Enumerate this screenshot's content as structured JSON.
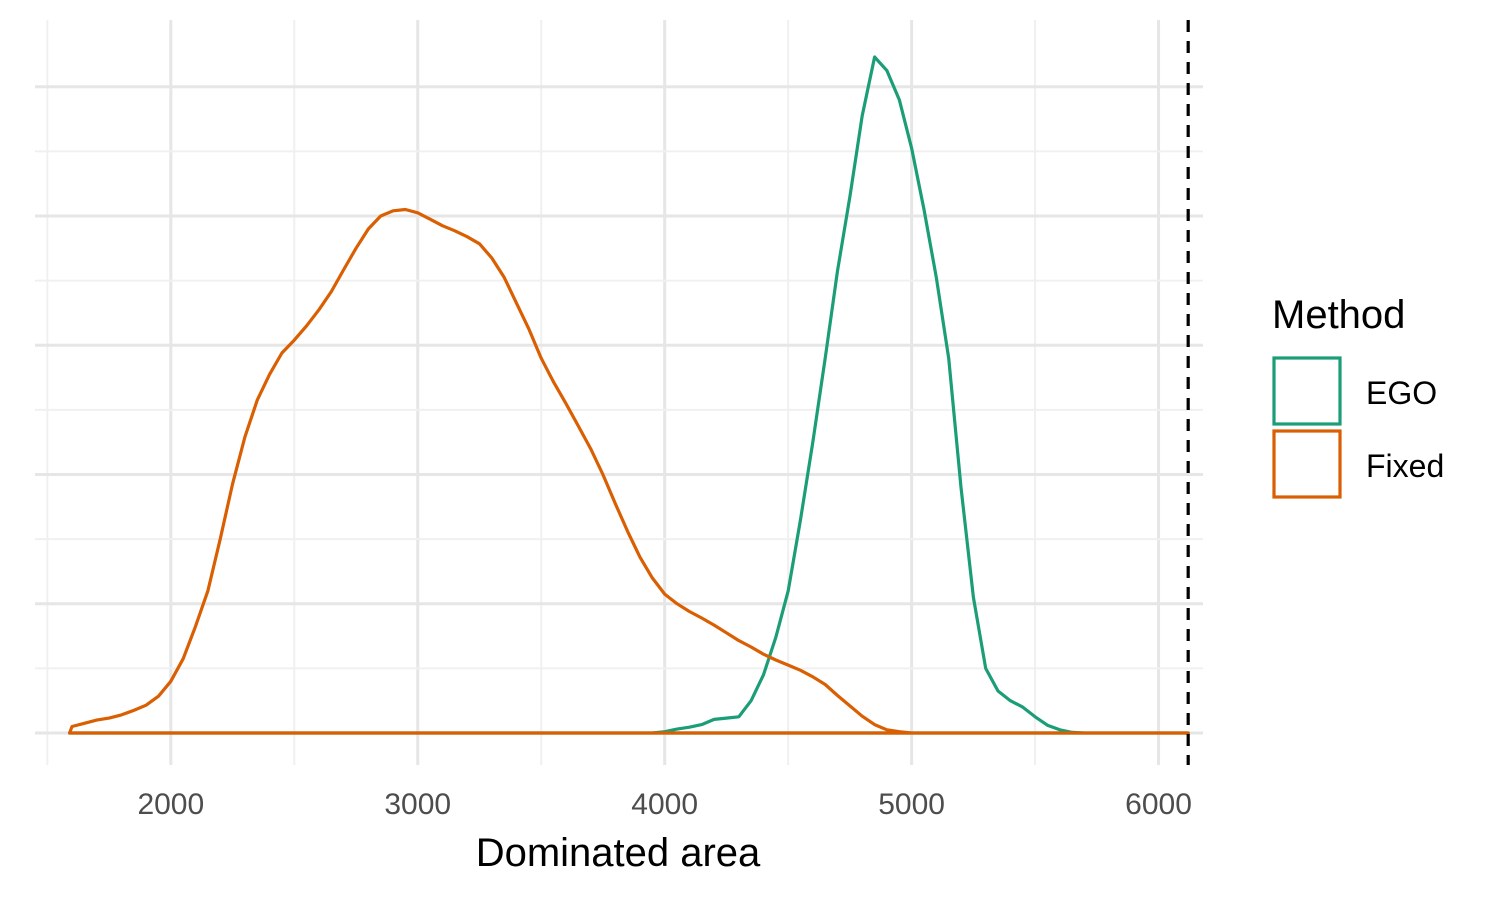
{
  "chart_data": {
    "type": "density",
    "title": "",
    "xlabel": "Dominated area",
    "ylabel": "",
    "xlim": [
      1450,
      6180
    ],
    "ylim": [
      0,
      0.00218
    ],
    "x_ticks": [
      2000,
      3000,
      4000,
      5000,
      6000
    ],
    "grid": true,
    "reference_line": {
      "x": 6120,
      "style": "dashed",
      "color": "#000000"
    },
    "legend": {
      "title": "Method",
      "position": "right"
    },
    "series": [
      {
        "name": "EGO",
        "color": "#1b9e77",
        "points": [
          [
            1590,
            0
          ],
          [
            3950,
            0
          ],
          [
            4000,
            2e-05
          ],
          [
            4050,
            6e-05
          ],
          [
            4100,
            9e-05
          ],
          [
            4150,
            0.00013
          ],
          [
            4200,
            0.00021
          ],
          [
            4250,
            0.00023
          ],
          [
            4300,
            0.00025
          ],
          [
            4350,
            0.0005
          ],
          [
            4400,
            0.0009
          ],
          [
            4450,
            0.00148
          ],
          [
            4500,
            0.0022
          ],
          [
            4550,
            0.0033
          ],
          [
            4600,
            0.0045
          ],
          [
            4650,
            0.0058
          ],
          [
            4700,
            0.00715
          ],
          [
            4750,
            0.0083
          ],
          [
            4800,
            0.00955
          ],
          [
            4850,
            0.01046
          ],
          [
            4900,
            0.01025
          ],
          [
            4950,
            0.0098
          ],
          [
            5000,
            0.00905
          ],
          [
            5050,
            0.0081
          ],
          [
            5100,
            0.00705
          ],
          [
            5150,
            0.0058
          ],
          [
            5200,
            0.0038
          ],
          [
            5250,
            0.0021
          ],
          [
            5300,
            0.001
          ],
          [
            5350,
            0.00065
          ],
          [
            5400,
            0.0005
          ],
          [
            5450,
            0.0004
          ],
          [
            5500,
            0.00025
          ],
          [
            5550,
            0.00012
          ],
          [
            5600,
            5e-05
          ],
          [
            5650,
            1e-05
          ],
          [
            5700,
            0
          ],
          [
            6120,
            0
          ]
        ]
      },
      {
        "name": "Fixed",
        "color": "#d95f02",
        "points": [
          [
            1590,
            0
          ],
          [
            1600,
            0.0001
          ],
          [
            1650,
            0.00015
          ],
          [
            1700,
            0.0002
          ],
          [
            1750,
            0.00023
          ],
          [
            1800,
            0.00028
          ],
          [
            1850,
            0.00035
          ],
          [
            1900,
            0.00043
          ],
          [
            1950,
            0.00057
          ],
          [
            2000,
            0.0008
          ],
          [
            2050,
            0.00115
          ],
          [
            2100,
            0.00165
          ],
          [
            2150,
            0.0022
          ],
          [
            2200,
            0.003
          ],
          [
            2250,
            0.00385
          ],
          [
            2300,
            0.00458
          ],
          [
            2350,
            0.00515
          ],
          [
            2400,
            0.00555
          ],
          [
            2450,
            0.00588
          ],
          [
            2500,
            0.00608
          ],
          [
            2550,
            0.0063
          ],
          [
            2600,
            0.00655
          ],
          [
            2650,
            0.00683
          ],
          [
            2700,
            0.00717
          ],
          [
            2750,
            0.0075
          ],
          [
            2800,
            0.0078
          ],
          [
            2850,
            0.008
          ],
          [
            2900,
            0.00808
          ],
          [
            2950,
            0.0081
          ],
          [
            3000,
            0.00805
          ],
          [
            3050,
            0.00795
          ],
          [
            3100,
            0.00785
          ],
          [
            3150,
            0.00777
          ],
          [
            3200,
            0.00768
          ],
          [
            3250,
            0.00757
          ],
          [
            3300,
            0.00735
          ],
          [
            3350,
            0.00705
          ],
          [
            3400,
            0.00665
          ],
          [
            3450,
            0.00625
          ],
          [
            3500,
            0.0058
          ],
          [
            3550,
            0.00543
          ],
          [
            3600,
            0.0051
          ],
          [
            3650,
            0.00475
          ],
          [
            3700,
            0.0044
          ],
          [
            3750,
            0.004
          ],
          [
            3800,
            0.00355
          ],
          [
            3850,
            0.00312
          ],
          [
            3900,
            0.00272
          ],
          [
            3950,
            0.0024
          ],
          [
            4000,
            0.00215
          ],
          [
            4050,
            0.002
          ],
          [
            4100,
            0.00188
          ],
          [
            4150,
            0.00178
          ],
          [
            4200,
            0.00167
          ],
          [
            4250,
            0.00155
          ],
          [
            4300,
            0.00143
          ],
          [
            4350,
            0.00133
          ],
          [
            4400,
            0.00122
          ],
          [
            4450,
            0.00113
          ],
          [
            4500,
            0.00105
          ],
          [
            4550,
            0.00097
          ],
          [
            4600,
            0.00087
          ],
          [
            4650,
            0.00075
          ],
          [
            4700,
            0.00058
          ],
          [
            4750,
            0.00042
          ],
          [
            4800,
            0.00026
          ],
          [
            4850,
            0.00013
          ],
          [
            4900,
            5e-05
          ],
          [
            4950,
            2e-05
          ],
          [
            5000,
            0
          ],
          [
            6120,
            0
          ]
        ]
      }
    ]
  }
}
